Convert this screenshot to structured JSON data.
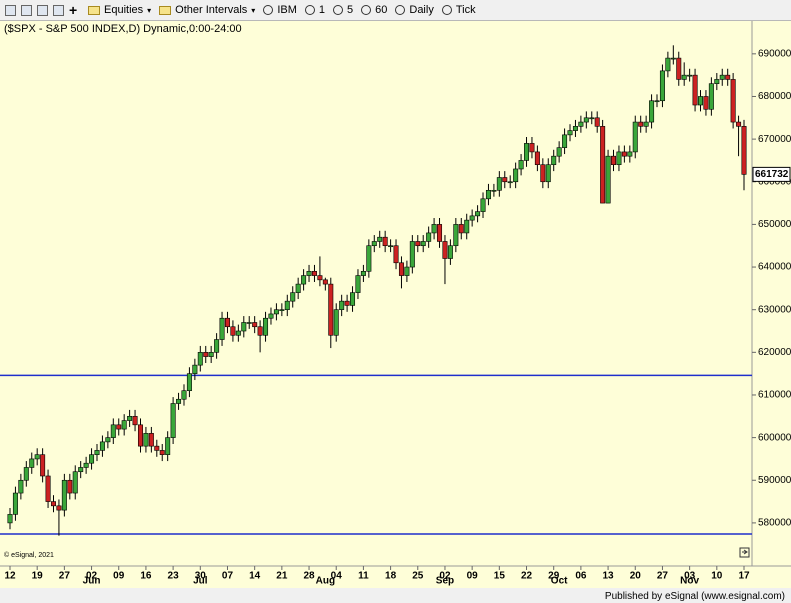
{
  "toolbar": {
    "items": [
      "Equities",
      "Other Intervals",
      "IBM",
      "1",
      "5",
      "60",
      "Daily",
      "Tick"
    ]
  },
  "footer": "Published by eSignal (www.esignal.com)",
  "chart_data": {
    "type": "candlestick",
    "title": "($SPX - S&P 500 INDEX,D) Dynamic,0:00-24:00",
    "copyright": "© eSignal, 2021",
    "up_color": "#3aa63a",
    "down_color": "#cc2222",
    "line_color": "#1f2fcc",
    "ylim": [
      571300,
      697700
    ],
    "yticks": [
      580000,
      590000,
      600000,
      610000,
      620000,
      630000,
      640000,
      650000,
      660000,
      670000,
      680000,
      690000
    ],
    "hlines": [
      614600,
      577400
    ],
    "last_value": 661732,
    "xticks": [
      {
        "value": 0,
        "label": "12"
      },
      {
        "value": 5,
        "label": "19"
      },
      {
        "value": 10,
        "label": "27"
      },
      {
        "value": 15,
        "label": "02"
      },
      {
        "value": 20,
        "label": "09"
      },
      {
        "value": 25,
        "label": "16"
      },
      {
        "value": 30,
        "label": "23"
      },
      {
        "value": 35,
        "label": "30"
      },
      {
        "value": 40,
        "label": "07"
      },
      {
        "value": 45,
        "label": "14"
      },
      {
        "value": 50,
        "label": "21"
      },
      {
        "value": 55,
        "label": "28"
      },
      {
        "value": 60,
        "label": "04"
      },
      {
        "value": 65,
        "label": "11"
      },
      {
        "value": 70,
        "label": "18"
      },
      {
        "value": 75,
        "label": "25"
      },
      {
        "value": 80,
        "label": "02"
      },
      {
        "value": 85,
        "label": "09"
      },
      {
        "value": 90,
        "label": "15"
      },
      {
        "value": 95,
        "label": "22"
      },
      {
        "value": 100,
        "label": "29"
      },
      {
        "value": 105,
        "label": "06"
      },
      {
        "value": 110,
        "label": "13"
      },
      {
        "value": 115,
        "label": "20"
      },
      {
        "value": 120,
        "label": "27"
      },
      {
        "value": 125,
        "label": "03"
      },
      {
        "value": 130,
        "label": "10"
      },
      {
        "value": 135,
        "label": "17"
      }
    ],
    "months": [
      {
        "value": 15,
        "label": "Jun"
      },
      {
        "value": 35,
        "label": "Jul"
      },
      {
        "value": 58,
        "label": "Aug"
      },
      {
        "value": 80,
        "label": "Sep"
      },
      {
        "value": 101,
        "label": "Oct"
      },
      {
        "value": 125,
        "label": "Nov"
      }
    ],
    "open": [
      580000,
      582000,
      587000,
      590000,
      593000,
      595000,
      596000,
      591000,
      585000,
      584000,
      583000,
      590000,
      587000,
      592000,
      593000,
      594000,
      596000,
      597000,
      599000,
      600000,
      603000,
      602000,
      604000,
      605000,
      603000,
      598000,
      601000,
      598000,
      597000,
      596000,
      600000,
      608000,
      609000,
      611000,
      615000,
      617000,
      620000,
      619000,
      620000,
      623000,
      628000,
      626000,
      624000,
      625000,
      627000,
      627000,
      626000,
      624000,
      628000,
      629000,
      630000,
      630000,
      632000,
      634000,
      636000,
      638000,
      639000,
      638000,
      637000,
      636000,
      624000,
      630000,
      632000,
      631000,
      634000,
      638000,
      639000,
      645000,
      646000,
      647000,
      645000,
      645000,
      641000,
      638000,
      640000,
      646000,
      645000,
      646000,
      648000,
      650000,
      646000,
      642000,
      645000,
      650000,
      648000,
      651000,
      652000,
      653000,
      656000,
      658000,
      658000,
      661000,
      660000,
      660000,
      663000,
      665000,
      669000,
      667000,
      664000,
      660000,
      664000,
      666000,
      668000,
      671000,
      672000,
      673000,
      674000,
      675000,
      675000,
      673000,
      655000,
      666000,
      664000,
      667000,
      666000,
      667000,
      674000,
      673000,
      674000,
      679000,
      679000,
      686000,
      689000,
      689000,
      684000,
      685000,
      685000,
      678000,
      680000,
      677000,
      683000,
      684000,
      685000,
      684000,
      674000,
      673000
    ],
    "high": [
      583500,
      588500,
      591500,
      594500,
      596500,
      597500,
      597500,
      592500,
      586500,
      585500,
      591500,
      591500,
      593500,
      594500,
      595500,
      597500,
      598500,
      600500,
      601500,
      604500,
      604500,
      605500,
      606500,
      606500,
      604500,
      602500,
      602500,
      599500,
      598500,
      601500,
      609500,
      610500,
      612500,
      616500,
      618500,
      621500,
      621500,
      621500,
      624500,
      629500,
      629500,
      627500,
      626500,
      628500,
      628500,
      628500,
      627500,
      629500,
      630500,
      631500,
      631500,
      633500,
      635500,
      637500,
      639500,
      640500,
      640500,
      642500,
      637500,
      637500,
      631500,
      633500,
      633500,
      635500,
      639500,
      640500,
      646500,
      647500,
      648500,
      648500,
      646500,
      646500,
      642500,
      641500,
      647500,
      647500,
      647500,
      649500,
      651500,
      651500,
      647500,
      646500,
      651500,
      651500,
      652500,
      653500,
      654500,
      657500,
      659500,
      659500,
      662500,
      662500,
      661500,
      664500,
      666500,
      670500,
      670500,
      668500,
      665500,
      665500,
      667500,
      669500,
      672500,
      673500,
      674500,
      675500,
      676500,
      676500,
      676500,
      674500,
      667500,
      667500,
      668500,
      668500,
      668500,
      675500,
      675500,
      675500,
      680500,
      680500,
      687500,
      690500,
      692000,
      690500,
      688000,
      686500,
      686500,
      681500,
      681500,
      684500,
      685500,
      686500,
      686500,
      685500,
      675500,
      674500
    ],
    "low": [
      578500,
      580500,
      585500,
      588500,
      591500,
      593500,
      589500,
      583500,
      582500,
      577000,
      581500,
      585500,
      585500,
      590500,
      591500,
      592500,
      594500,
      595500,
      597500,
      598500,
      600500,
      600500,
      602500,
      601500,
      596500,
      596500,
      596500,
      595500,
      594500,
      594500,
      598500,
      606500,
      607500,
      609500,
      613500,
      615500,
      617500,
      617500,
      618500,
      621500,
      624500,
      622500,
      622500,
      623500,
      625500,
      624500,
      620000,
      622500,
      626500,
      627500,
      628500,
      628500,
      630500,
      632500,
      634500,
      636500,
      636500,
      635500,
      634500,
      621000,
      622500,
      628500,
      629500,
      629500,
      632500,
      636500,
      637500,
      643500,
      644500,
      643500,
      643500,
      639500,
      635000,
      636500,
      638500,
      643500,
      643500,
      644500,
      646500,
      644500,
      636000,
      640500,
      643500,
      646500,
      646500,
      649500,
      650500,
      651500,
      654500,
      656500,
      656500,
      658500,
      658500,
      658500,
      661500,
      663500,
      665500,
      662500,
      658500,
      658500,
      662500,
      664500,
      666500,
      669500,
      670500,
      671500,
      672500,
      673500,
      671500,
      655000,
      655000,
      662500,
      662500,
      664500,
      664500,
      665500,
      671500,
      671500,
      672500,
      677500,
      677500,
      684500,
      687500,
      682500,
      682500,
      683500,
      676500,
      676500,
      675500,
      675500,
      681500,
      682500,
      682500,
      672500,
      666000,
      658000
    ],
    "close": [
      582000,
      587000,
      590000,
      593000,
      595000,
      596000,
      591000,
      585000,
      584000,
      583000,
      590000,
      587000,
      592000,
      593000,
      594000,
      596000,
      597000,
      599000,
      600000,
      603000,
      602000,
      604000,
      605000,
      603000,
      598000,
      601000,
      598000,
      597000,
      596000,
      600000,
      608000,
      609000,
      611000,
      615000,
      617000,
      620000,
      619000,
      620000,
      623000,
      628000,
      626000,
      624000,
      625000,
      627000,
      627000,
      626000,
      624000,
      628000,
      629000,
      630000,
      630000,
      632000,
      634000,
      636000,
      638000,
      639000,
      638000,
      637000,
      636000,
      624000,
      630000,
      632000,
      631000,
      634000,
      638000,
      639000,
      645000,
      646000,
      647000,
      645000,
      645000,
      641000,
      638000,
      640000,
      646000,
      645000,
      646000,
      648000,
      650000,
      646000,
      642000,
      645000,
      650000,
      648000,
      651000,
      652000,
      653000,
      656000,
      658000,
      658000,
      661000,
      660000,
      660000,
      663000,
      665000,
      669000,
      667000,
      664000,
      660000,
      664000,
      666000,
      668000,
      671000,
      672000,
      673000,
      674000,
      675000,
      675000,
      673000,
      655000,
      666000,
      664000,
      667000,
      666000,
      667000,
      674000,
      673000,
      674000,
      679000,
      679000,
      686000,
      689000,
      689000,
      684000,
      685000,
      685000,
      678000,
      680000,
      677000,
      683000,
      684000,
      685000,
      684000,
      674000,
      673000,
      661732
    ]
  }
}
